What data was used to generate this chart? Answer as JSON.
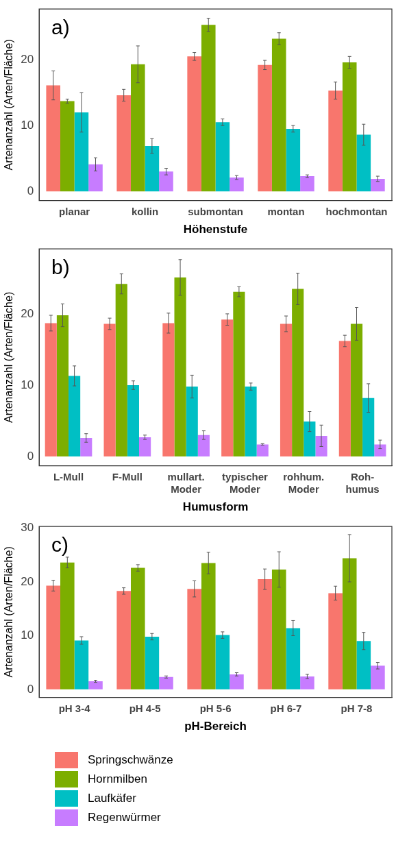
{
  "chart_data": [
    {
      "type": "bar",
      "annotations": [
        "a)"
      ],
      "xlabel": "Höhenstufe",
      "ylabel": "Artenanzahl (Arten/Fläche)",
      "categories": [
        "planar",
        "kollin",
        "submontan",
        "montan",
        "hochmontan"
      ],
      "ylim": [
        -1.4,
        27.7
      ],
      "yticks": [
        0,
        10,
        20
      ],
      "grid": false,
      "legend": false,
      "series": [
        {
          "color": "#f8766d",
          "values": [
            16.1,
            14.6,
            20.5,
            19.2,
            15.3
          ],
          "errors": [
            2.2,
            0.9,
            0.6,
            0.7,
            1.3
          ]
        },
        {
          "color": "#7cae00",
          "values": [
            13.7,
            19.3,
            25.3,
            23.2,
            19.6
          ],
          "errors": [
            0.3,
            2.8,
            1.0,
            0.9,
            0.9
          ]
        },
        {
          "color": "#00bfc4",
          "values": [
            12.0,
            6.9,
            10.5,
            9.5,
            8.6
          ],
          "errors": [
            3.0,
            1.1,
            0.5,
            0.5,
            1.6
          ]
        },
        {
          "color": "#c77cff",
          "values": [
            4.1,
            3.0,
            2.1,
            2.3,
            1.9
          ],
          "errors": [
            1.0,
            0.5,
            0.3,
            0.2,
            0.4
          ]
        }
      ]
    },
    {
      "type": "bar",
      "annotations": [
        "b)"
      ],
      "xlabel": "Humusform",
      "ylabel": "Artenanzahl (Arten/Fläche)",
      "categories": [
        "L-Mull",
        "F-Mull",
        "mullart.\nModer",
        "typischer\nModer",
        "rohhum.\nModer",
        "Roh-\nhumus"
      ],
      "ylim": [
        -1.3,
        29.1
      ],
      "yticks": [
        0,
        10,
        20
      ],
      "grid": false,
      "legend": false,
      "series": [
        {
          "color": "#f8766d",
          "values": [
            18.7,
            18.6,
            18.7,
            19.2,
            18.6,
            16.2
          ],
          "errors": [
            1.1,
            0.8,
            1.4,
            0.8,
            1.1,
            0.8
          ]
        },
        {
          "color": "#7cae00",
          "values": [
            19.8,
            24.2,
            25.1,
            23.1,
            23.5,
            18.6
          ],
          "errors": [
            1.6,
            1.4,
            2.5,
            0.7,
            2.2,
            2.3
          ]
        },
        {
          "color": "#00bfc4",
          "values": [
            11.3,
            10.0,
            9.8,
            9.8,
            4.9,
            8.2
          ],
          "errors": [
            1.4,
            0.6,
            1.6,
            0.5,
            1.4,
            2.0
          ]
        },
        {
          "color": "#c77cff",
          "values": [
            2.6,
            2.7,
            3.0,
            1.7,
            2.9,
            1.7
          ],
          "errors": [
            0.6,
            0.3,
            0.6,
            0.1,
            1.5,
            0.6
          ]
        }
      ]
    },
    {
      "type": "bar",
      "annotations": [
        "c)"
      ],
      "xlabel": "pH-Bereich",
      "ylabel": "Artenanzahl (Arten/Fläche)",
      "categories": [
        "pH 3-4",
        "pH 4-5",
        "pH 5-6",
        "pH 6-7",
        "pH 7-8"
      ],
      "ylim": [
        -1.5,
        30.3
      ],
      "yticks": [
        0,
        10,
        20,
        30
      ],
      "grid": false,
      "legend": "bottom",
      "series": [
        {
          "name": "Springschwänze",
          "color": "#f8766d",
          "values": [
            19.3,
            18.3,
            18.7,
            20.5,
            17.9
          ],
          "errors": [
            1.0,
            0.6,
            1.5,
            1.9,
            1.3
          ]
        },
        {
          "name": "Hornmilben",
          "color": "#7cae00",
          "values": [
            23.6,
            22.6,
            23.5,
            22.3,
            24.4
          ],
          "errors": [
            1.0,
            0.6,
            2.0,
            3.3,
            4.4
          ]
        },
        {
          "name": "Laufkäfer",
          "color": "#00bfc4",
          "values": [
            9.1,
            9.8,
            10.1,
            11.4,
            9.0
          ],
          "errors": [
            0.7,
            0.6,
            0.6,
            1.4,
            1.6
          ]
        },
        {
          "name": "Regenwürmer",
          "color": "#c77cff",
          "values": [
            1.5,
            2.3,
            2.8,
            2.4,
            4.4
          ],
          "errors": [
            0.2,
            0.2,
            0.3,
            0.4,
            0.6
          ]
        }
      ]
    }
  ]
}
